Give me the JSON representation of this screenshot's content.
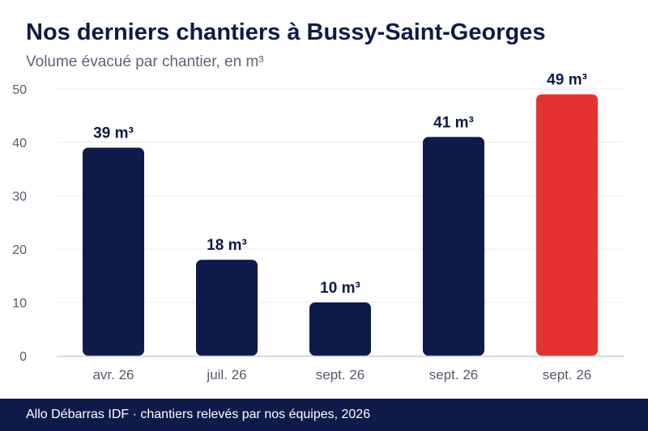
{
  "title": "Nos derniers chantiers à Bussy-Saint-Georges",
  "subtitle": "Volume évacué par chantier, en m³",
  "footer": "Allo Débarras IDF · chantiers relevés par nos équipes, 2026",
  "colors": {
    "bar": "#0e1a4a",
    "highlight": "#e3322f",
    "grid": "#e8e8e8",
    "axis": "#c9ccd8",
    "tick_text": "#555a6b",
    "label_text": "#0e1a4a"
  },
  "chart_data": {
    "type": "bar",
    "categories": [
      "avr. 26",
      "juil. 26",
      "sept. 26",
      "sept. 26",
      "sept. 26"
    ],
    "values": [
      39,
      18,
      10,
      41,
      49
    ],
    "data_labels": [
      "39 m³",
      "18 m³",
      "10 m³",
      "41 m³",
      "49 m³"
    ],
    "highlighted_index": 4,
    "yticks": [
      0,
      10,
      20,
      30,
      40,
      50
    ],
    "ylim": [
      0,
      50
    ],
    "grid": true,
    "legend": "none"
  }
}
